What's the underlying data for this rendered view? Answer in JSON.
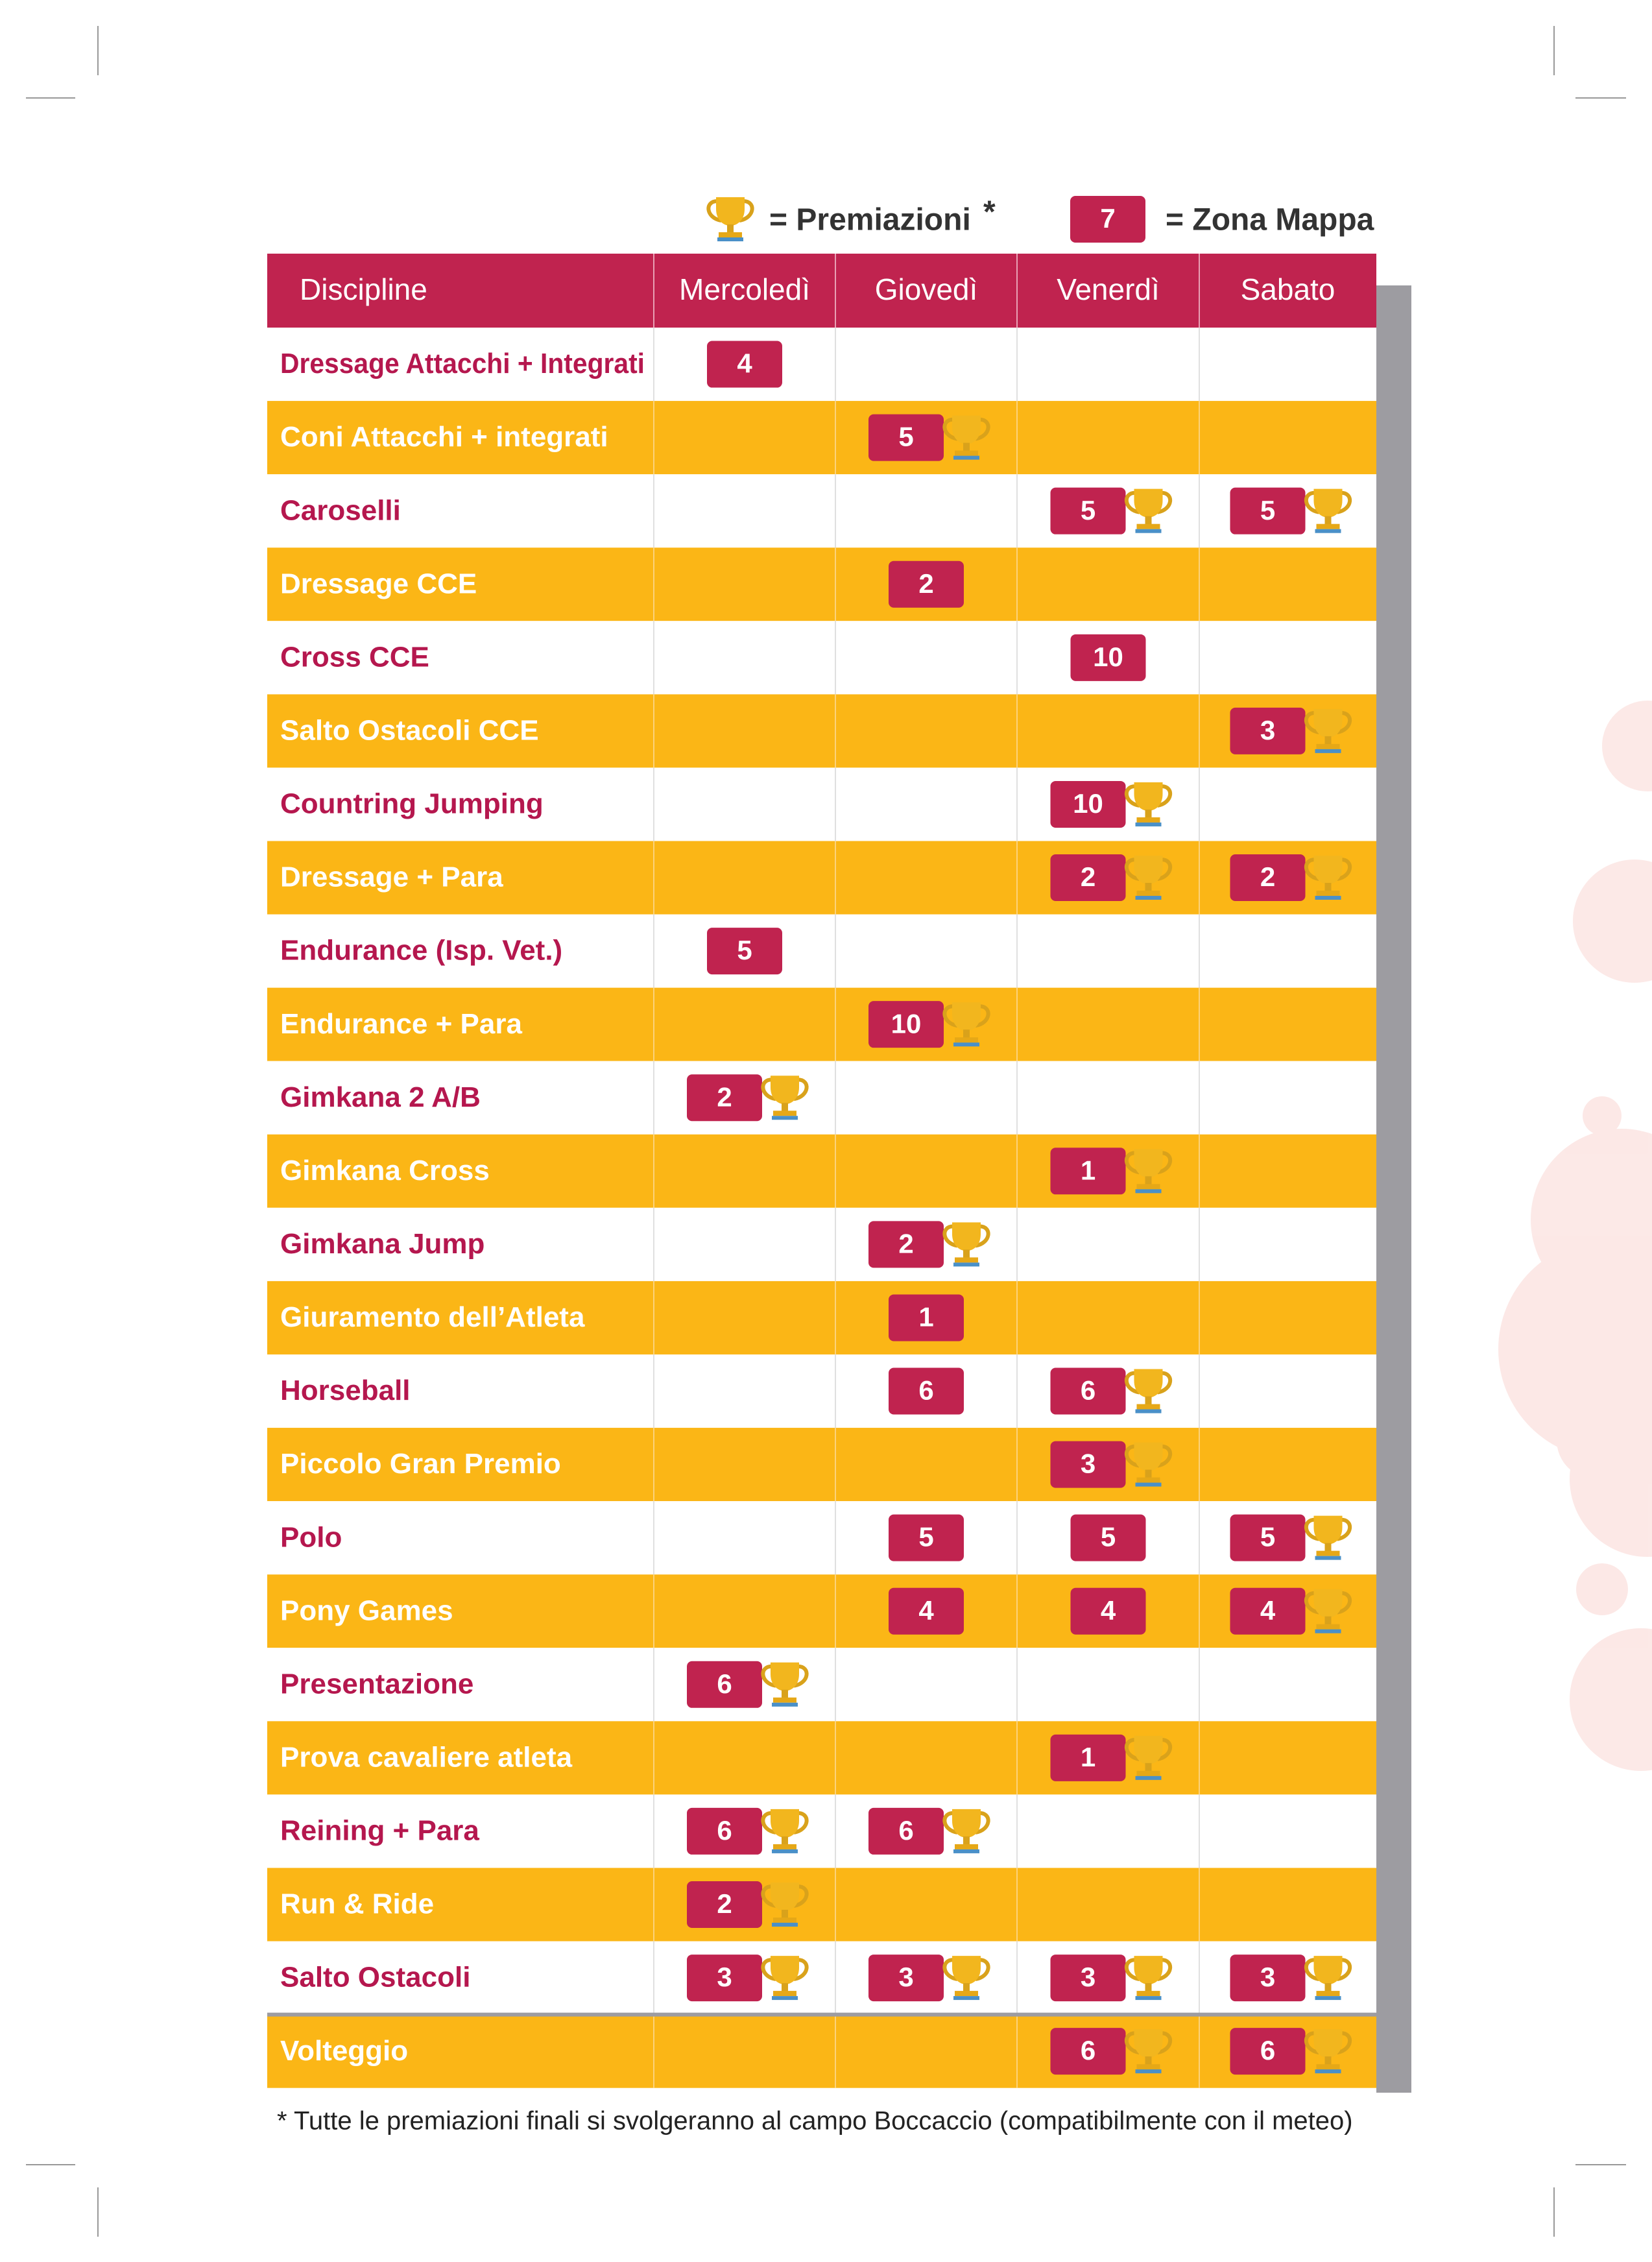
{
  "legend": {
    "award_text": "= Premiazioni",
    "asterisk": "*",
    "zone_example": 7,
    "zone_text": "= Zona Mappa"
  },
  "table": {
    "headers": [
      "Discipline",
      "Mercoledì",
      "Giovedì",
      "Venerdì",
      "Sabato"
    ],
    "rows": [
      {
        "discipline": "Dressage Attacchi + Integrati",
        "cells": [
          {
            "zone": 4,
            "award": false
          },
          null,
          null,
          null
        ]
      },
      {
        "discipline": "Coni Attacchi + integrati",
        "cells": [
          null,
          {
            "zone": 5,
            "award": true
          },
          null,
          null
        ]
      },
      {
        "discipline": "Caroselli",
        "cells": [
          null,
          null,
          {
            "zone": 5,
            "award": true
          },
          {
            "zone": 5,
            "award": true
          }
        ]
      },
      {
        "discipline": "Dressage CCE",
        "cells": [
          null,
          {
            "zone": 2,
            "award": false
          },
          null,
          null
        ]
      },
      {
        "discipline": "Cross CCE",
        "cells": [
          null,
          null,
          {
            "zone": 10,
            "award": false
          },
          null
        ]
      },
      {
        "discipline": "Salto Ostacoli CCE",
        "cells": [
          null,
          null,
          null,
          {
            "zone": 3,
            "award": true
          }
        ]
      },
      {
        "discipline": "Countring Jumping",
        "cells": [
          null,
          null,
          {
            "zone": 10,
            "award": true
          },
          null
        ]
      },
      {
        "discipline": "Dressage + Para",
        "cells": [
          null,
          null,
          {
            "zone": 2,
            "award": true
          },
          {
            "zone": 2,
            "award": true
          }
        ]
      },
      {
        "discipline": "Endurance (Isp. Vet.)",
        "cells": [
          {
            "zone": 5,
            "award": false
          },
          null,
          null,
          null
        ]
      },
      {
        "discipline": "Endurance + Para",
        "cells": [
          null,
          {
            "zone": 10,
            "award": true
          },
          null,
          null
        ]
      },
      {
        "discipline": "Gimkana 2 A/B",
        "cells": [
          {
            "zone": 2,
            "award": true
          },
          null,
          null,
          null
        ]
      },
      {
        "discipline": "Gimkana Cross",
        "cells": [
          null,
          null,
          {
            "zone": 1,
            "award": true
          },
          null
        ]
      },
      {
        "discipline": "Gimkana Jump",
        "cells": [
          null,
          {
            "zone": 2,
            "award": true
          },
          null,
          null
        ]
      },
      {
        "discipline": "Giuramento dell’Atleta",
        "cells": [
          null,
          {
            "zone": 1,
            "award": false
          },
          null,
          null
        ]
      },
      {
        "discipline": "Horseball",
        "cells": [
          null,
          {
            "zone": 6,
            "award": false
          },
          {
            "zone": 6,
            "award": true
          },
          null
        ]
      },
      {
        "discipline": "Piccolo Gran Premio",
        "cells": [
          null,
          null,
          {
            "zone": 3,
            "award": true
          },
          null
        ]
      },
      {
        "discipline": "Polo",
        "cells": [
          null,
          {
            "zone": 5,
            "award": false
          },
          {
            "zone": 5,
            "award": false
          },
          {
            "zone": 5,
            "award": true
          }
        ]
      },
      {
        "discipline": "Pony Games",
        "cells": [
          null,
          {
            "zone": 4,
            "award": false
          },
          {
            "zone": 4,
            "award": false
          },
          {
            "zone": 4,
            "award": true
          }
        ]
      },
      {
        "discipline": "Presentazione",
        "cells": [
          {
            "zone": 6,
            "award": true
          },
          null,
          null,
          null
        ]
      },
      {
        "discipline": "Prova cavaliere atleta",
        "cells": [
          null,
          null,
          {
            "zone": 1,
            "award": true
          },
          null
        ]
      },
      {
        "discipline": "Reining + Para",
        "cells": [
          {
            "zone": 6,
            "award": true
          },
          {
            "zone": 6,
            "award": true
          },
          null,
          null
        ]
      },
      {
        "discipline": "Run & Ride",
        "cells": [
          {
            "zone": 2,
            "award": true
          },
          null,
          null,
          null
        ]
      },
      {
        "discipline": "Salto Ostacoli",
        "cells": [
          {
            "zone": 3,
            "award": true
          },
          {
            "zone": 3,
            "award": true
          },
          {
            "zone": 3,
            "award": true
          },
          {
            "zone": 3,
            "award": true
          }
        ]
      },
      {
        "discipline": "Volteggio",
        "cells": [
          null,
          null,
          {
            "zone": 6,
            "award": true
          },
          {
            "zone": 6,
            "award": true
          }
        ]
      }
    ]
  },
  "footnote": "* Tutte le premiazioni finali si svolgeranno al campo Boccaccio (compatibilmente con il meteo)"
}
